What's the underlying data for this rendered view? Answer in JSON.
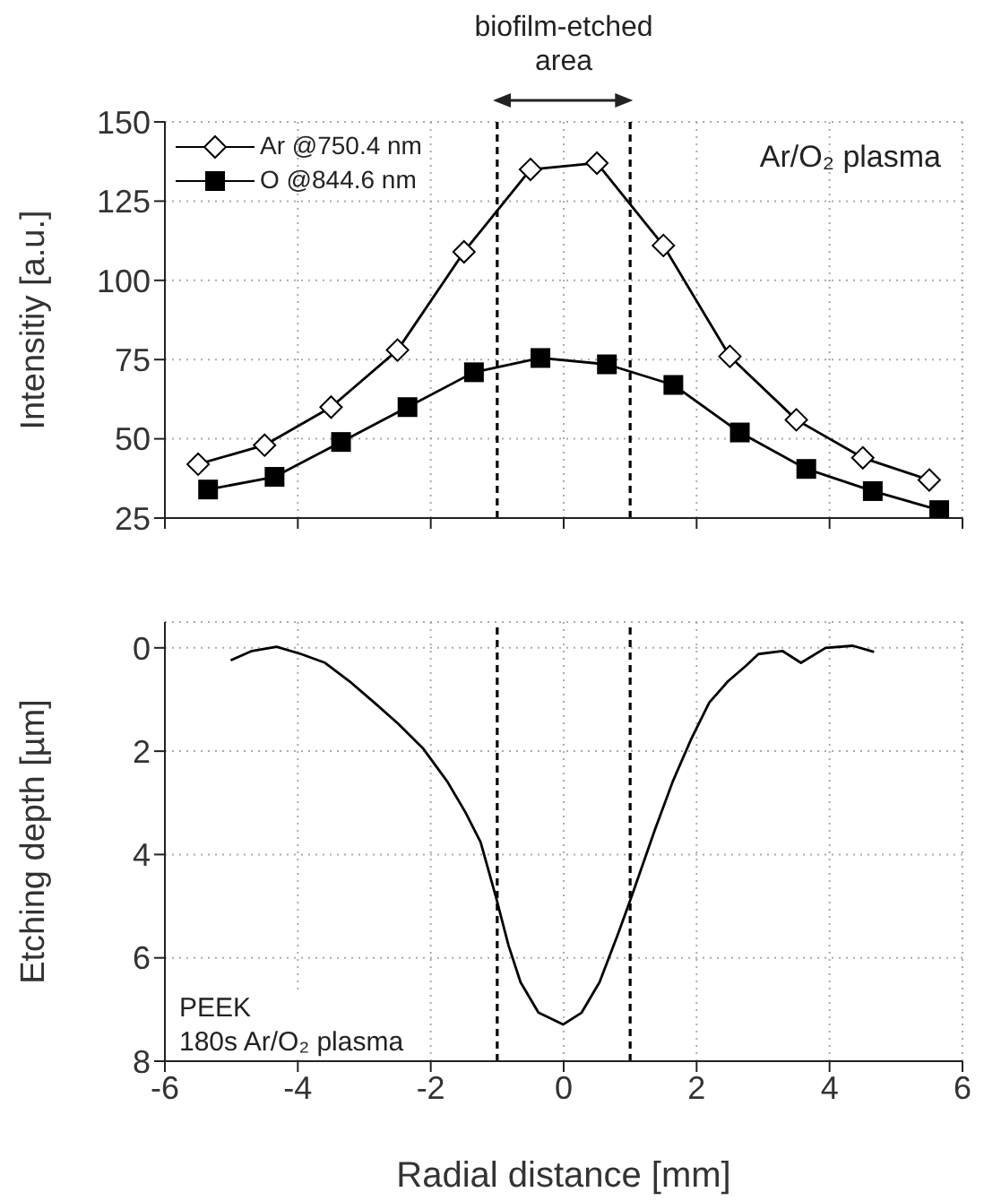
{
  "chart_data": [
    {
      "type": "line",
      "ylabel": "Intensitiy [a.u.]",
      "xlim": [
        -6,
        6
      ],
      "xticks": [
        -6,
        -4,
        -2,
        0,
        2,
        4,
        6
      ],
      "ylim": [
        25,
        150
      ],
      "yticks": [
        25,
        50,
        75,
        100,
        125,
        150
      ],
      "tick_labels": "y",
      "grid": true,
      "legend": "top left",
      "annotations": [
        "biofilm-etched area",
        "Ar/O₂ plasma"
      ],
      "ref_lines": [
        {
          "axis": "x",
          "value": -1,
          "line_style": "dashed",
          "color": "#000000"
        },
        {
          "axis": "x",
          "value": 1,
          "line_style": "dashed",
          "color": "#000000"
        }
      ],
      "series": [
        {
          "name": "Ar @750.4 nm",
          "color": "#000000",
          "marker": "diamond",
          "x": [
            -5.5,
            -4.5,
            -3.5,
            -2.5,
            -1.5,
            -0.5,
            0.5,
            1.5,
            2.5,
            3.5,
            4.5,
            5.5
          ],
          "values": [
            42,
            48,
            60,
            78,
            109,
            135,
            137,
            111,
            76,
            56,
            44,
            37
          ]
        },
        {
          "name": "O @844.6 nm",
          "color": "#000000",
          "marker": "square",
          "x": [
            -5.35,
            -4.35,
            -3.35,
            -2.35,
            -1.35,
            -0.35,
            0.65,
            1.65,
            2.65,
            3.65,
            4.65,
            5.65
          ],
          "values": [
            34,
            38,
            49,
            60,
            71,
            75.5,
            73.5,
            67,
            52,
            40.5,
            33.5,
            27.5
          ]
        }
      ]
    },
    {
      "type": "line",
      "xlabel": "Radial distance [mm]",
      "ylabel": "Etching depth [µm]",
      "xlim": [
        -6,
        6
      ],
      "xticks": [
        -6,
        -4,
        -2,
        0,
        2,
        4,
        6
      ],
      "ylim": [
        8,
        -0.5
      ],
      "yticks": [
        0,
        2,
        4,
        6,
        8
      ],
      "grid": true,
      "marker": "none",
      "annotations": [
        "PEEK",
        "180s Ar/O₂ plasma"
      ],
      "ref_lines": [
        {
          "axis": "x",
          "value": -1,
          "line_style": "dashed",
          "color": "#000000"
        },
        {
          "axis": "x",
          "value": 1,
          "line_style": "dashed",
          "color": "#000000"
        }
      ],
      "series": [
        {
          "color": "#000000",
          "x": [
            -5.01,
            -4.69,
            -4.32,
            -3.95,
            -3.59,
            -3.22,
            -2.85,
            -2.49,
            -2.12,
            -1.75,
            -1.48,
            -1.25,
            -1.02,
            -0.83,
            -0.65,
            -0.38,
            -0.01,
            0.27,
            0.54,
            0.82,
            1.05,
            1.37,
            1.64,
            1.92,
            2.19,
            2.47,
            2.74,
            2.93,
            3.29,
            3.57,
            3.94,
            4.35,
            4.67
          ],
          "values": [
            0.24,
            0.06,
            -0.02,
            0.12,
            0.29,
            0.65,
            1.06,
            1.47,
            1.94,
            2.59,
            3.18,
            3.76,
            4.82,
            5.76,
            6.47,
            7.06,
            7.29,
            7.06,
            6.47,
            5.53,
            4.71,
            3.53,
            2.59,
            1.76,
            1.06,
            0.65,
            0.35,
            0.12,
            0.06,
            0.29,
            0,
            -0.04,
            0.08
          ]
        }
      ]
    }
  ]
}
